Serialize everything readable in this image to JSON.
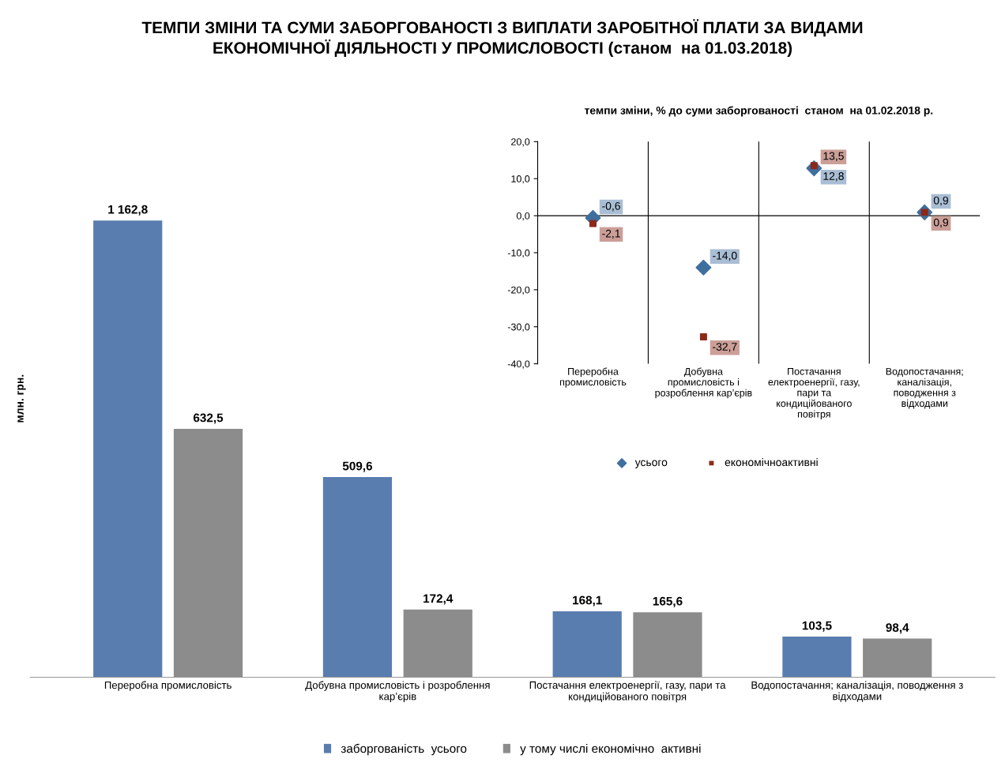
{
  "chart_data": [
    {
      "type": "bar",
      "title": "ТЕМПИ ЗМІНИ ТА СУМИ ЗАБОРГОВАНОСТІ З ВИПЛАТИ ЗАРОБІТНОЇ ПЛАТИ ЗА ВИДАМИ\nЕКОНОМІЧНОЇ ДІЯЛЬНОСТІ У ПРОМИСЛОВОСТІ (станом  на 01.03.2018)",
      "ylabel": "млн. грн.",
      "categories": [
        "Переробна промисловість",
        "Добувна промисловість і розроблення\nкар’єрів",
        "Постачання електроенергії, газу, пари та\nкондиційованого повітря",
        "Водопостачання; каналізація, поводження з\nвідходами"
      ],
      "series": [
        {
          "name": "заборгованість  усього",
          "color": "#5a7db0",
          "values": [
            1162.8,
            509.6,
            168.1,
            103.5
          ],
          "value_labels": [
            "1 162,8",
            "509,6",
            "168,1",
            "103,5"
          ]
        },
        {
          "name": "у тому числі економічно  активні",
          "color": "#8c8c8c",
          "values": [
            632.5,
            172.4,
            165.6,
            98.4
          ],
          "value_labels": [
            "632,5",
            "172,4",
            "165,6",
            "98,4"
          ]
        }
      ],
      "legend": "bottom",
      "tick_labels": "x",
      "grid": false
    },
    {
      "type": "scatter",
      "title": "темпи зміни, % до суми заборгованості  станом  на 01.02.2018 р.",
      "categories": [
        "Переробна\nпромисловість",
        "Добувна\nпромисловість і\nрозроблення кар’єрів",
        "Постачання\nелектроенергії, газу,\nпари та\nкондиційованого\nповітря",
        "Водопостачання;\nканалізація,\nповодження з\nвідходами"
      ],
      "series": [
        {
          "name": "усього",
          "color": "#3f6f9f",
          "marker": "diamond",
          "values": [
            -0.6,
            -14.0,
            12.8,
            0.9
          ],
          "value_labels": [
            "-0,6",
            "-14,0",
            "12,8",
            "0,9"
          ]
        },
        {
          "name": "економічноактивні",
          "color": "#8b2a1a",
          "marker": "square",
          "values": [
            -2.1,
            -32.7,
            13.5,
            0.9
          ],
          "value_labels": [
            "-2,1",
            "-32,7",
            "13,5",
            "0,9"
          ]
        }
      ],
      "ylim": [
        -40,
        20
      ],
      "yticks": [
        {
          "value": 20,
          "label": "20,0"
        },
        {
          "value": 10,
          "label": "10,0"
        },
        {
          "value": 0,
          "label": "0,0"
        },
        {
          "value": -10,
          "label": "-10,0"
        },
        {
          "value": -20,
          "label": "-20,0"
        },
        {
          "value": -30,
          "label": "-30,0"
        },
        {
          "value": -40,
          "label": "-40,0"
        }
      ],
      "ref_lines": [
        {
          "axis": "y",
          "value": 0,
          "color": "#000000"
        }
      ],
      "legend": "bottom",
      "grid": "x"
    }
  ]
}
